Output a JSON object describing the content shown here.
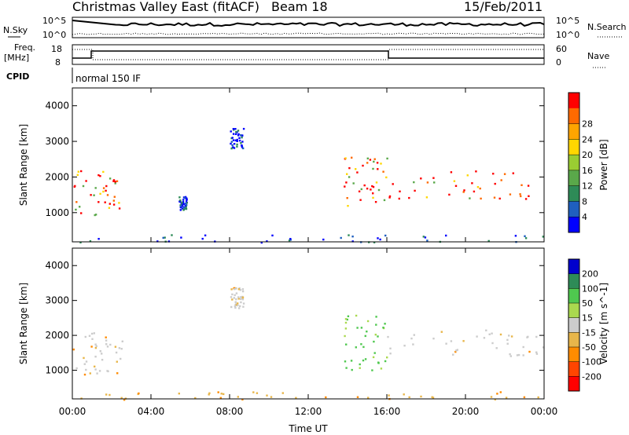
{
  "header": {
    "title": "Christmas Valley East (fitACF)",
    "beam": "Beam 18",
    "date": "15/Feb/2011"
  },
  "summary_panels": {
    "nsky_label": "N.Sky",
    "nsearch_label": "N.Search",
    "nsky_ticks": [
      "10^5",
      "10^0"
    ],
    "nsearch_ticks": [
      "10^5",
      "10^0"
    ],
    "freq_label": "Freq.",
    "freq_unit": "[MHz]",
    "freq_ticks": [
      "18",
      "8"
    ],
    "nave_label": "Nave",
    "nave_ticks": [
      "60",
      "0"
    ],
    "cpid_label": "CPID",
    "cpid_value": "normal 150 IF"
  },
  "colors": {
    "power_scale": [
      "#0000ff",
      "#1f5fbf",
      "#2e8b57",
      "#5aa84a",
      "#9acd32",
      "#ffd700",
      "#ffa500",
      "#ff6a00",
      "#ff0000"
    ],
    "velocity_scale": [
      "#0000cd",
      "#2e8b57",
      "#4fc84f",
      "#aad94f",
      "#cccccc",
      "#e8b64a",
      "#ff8c00",
      "#ff4500",
      "#ff0000"
    ]
  },
  "chart_data": [
    {
      "type": "heatmap",
      "panel": "power",
      "ylabel": "Slant Range [km]",
      "ylim": [
        180,
        4500
      ],
      "yticks": [
        "1000",
        "2000",
        "3000",
        "4000"
      ],
      "xticks": [
        "00:00",
        "04:00",
        "08:00",
        "12:00",
        "16:00",
        "20:00",
        "00:00"
      ],
      "colorbar_label": "Power [dB]",
      "colorbar_ticks": [
        "4",
        "8",
        "12",
        "16",
        "20",
        "24",
        "28"
      ],
      "regions": [
        {
          "t": [
            0.0,
            2.6
          ],
          "r": [
            900,
            2200
          ],
          "level": "high"
        },
        {
          "t": [
            8.0,
            8.7
          ],
          "r": [
            2800,
            3400
          ],
          "level": "low"
        },
        {
          "t": [
            5.4,
            5.8
          ],
          "r": [
            1100,
            1500
          ],
          "level": "low"
        },
        {
          "t": [
            13.8,
            16.0
          ],
          "r": [
            1000,
            2600
          ],
          "level": "high"
        },
        {
          "t": [
            16.0,
            24.0
          ],
          "r": [
            1400,
            2200
          ],
          "level": "high"
        },
        {
          "t": [
            0.0,
            24.0
          ],
          "r": [
            180,
            400
          ],
          "level": "low"
        }
      ]
    },
    {
      "type": "heatmap",
      "panel": "velocity",
      "ylabel": "Slant Range [km]",
      "ylim": [
        180,
        4500
      ],
      "yticks": [
        "1000",
        "2000",
        "3000",
        "4000"
      ],
      "xticks": [
        "00:00",
        "04:00",
        "08:00",
        "12:00",
        "16:00",
        "20:00",
        "00:00"
      ],
      "xlabel": "Time UT",
      "colorbar_label": "Velocity [m s^-1]",
      "colorbar_ticks": [
        "200",
        "100",
        "50",
        "15",
        "-15",
        "-50",
        "-100",
        "-200"
      ],
      "regions": [
        {
          "t": [
            0.0,
            2.6
          ],
          "r": [
            900,
            2200
          ],
          "level": "slow"
        },
        {
          "t": [
            8.0,
            8.7
          ],
          "r": [
            2800,
            3400
          ],
          "level": "slow"
        },
        {
          "t": [
            13.8,
            16.0
          ],
          "r": [
            1000,
            2600
          ],
          "level": "positive"
        },
        {
          "t": [
            16.0,
            24.0
          ],
          "r": [
            1400,
            2200
          ],
          "level": "slow"
        },
        {
          "t": [
            0.0,
            24.0
          ],
          "r": [
            180,
            400
          ],
          "level": "negative"
        }
      ]
    }
  ]
}
